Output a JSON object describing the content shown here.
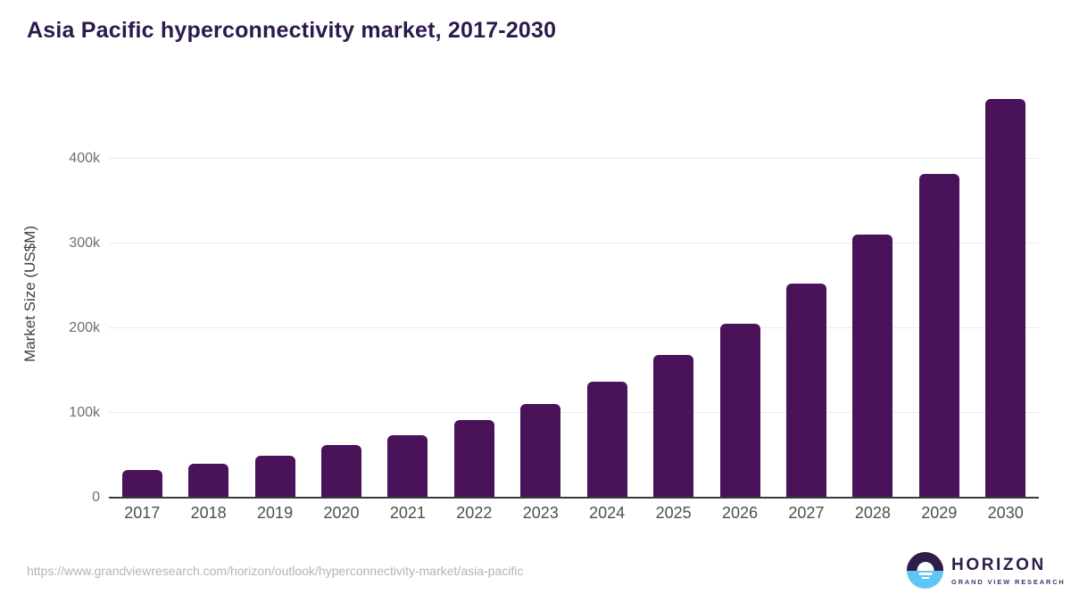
{
  "title": "Asia Pacific hyperconnectivity market, 2017-2030",
  "footer": {
    "source_url": "https://www.grandviewresearch.com/horizon/outlook/hyperconnectivity-market/asia-pacific",
    "brand": "HORIZON",
    "brand_sub": "GRAND VIEW RESEARCH"
  },
  "colors": {
    "bar": "#4a1259",
    "title_text": "#2c1a4d",
    "gridline": "#ebebee",
    "axis_line": "#3a3a3c",
    "ytick_text": "#6e6e6e",
    "year_text": "#4f4f4f",
    "url_text": "#b4b4b4",
    "logo_purple": "#2e1c49",
    "logo_blue": "#5ec6f2"
  },
  "chart_data": {
    "type": "bar",
    "title": "Asia Pacific hyperconnectivity market, 2017-2030",
    "xlabel": "",
    "ylabel": "Market Size (US$M)",
    "unit": "US$M",
    "categories": [
      "2017",
      "2018",
      "2019",
      "2020",
      "2021",
      "2022",
      "2023",
      "2024",
      "2025",
      "2026",
      "2027",
      "2028",
      "2029",
      "2030"
    ],
    "values": [
      33000,
      40000,
      50000,
      62000,
      74000,
      92000,
      111000,
      137000,
      168000,
      205000,
      253000,
      311000,
      382000,
      470000
    ],
    "ytick_labels": [
      "0",
      "100k",
      "200k",
      "300k",
      "400k"
    ],
    "ytick_values": [
      0,
      100000,
      200000,
      300000,
      400000
    ],
    "ylim": [
      0,
      482000
    ],
    "grid": "horizontal-only",
    "legend_position": "none",
    "bar_color": "#4a1259"
  }
}
